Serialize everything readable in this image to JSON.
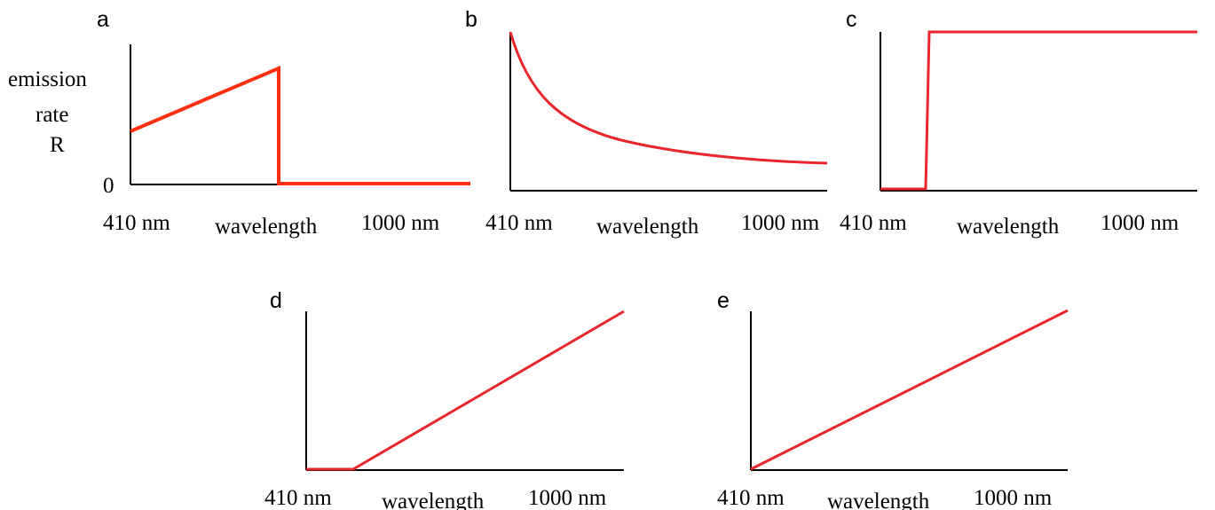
{
  "panels": [
    {
      "id": "a",
      "label": "a",
      "x_start_label": "410 nm",
      "x_mid_label": "wavelength",
      "x_end_label": "1000 nm",
      "y_label_lines": [
        "emission",
        "rate",
        "R"
      ],
      "y_zero_label": "0",
      "curve_color": "#ff3010"
    },
    {
      "id": "b",
      "label": "b",
      "x_start_label": "410 nm",
      "x_mid_label": "wavelength",
      "x_end_label": "1000 nm",
      "curve_color": "#e8262b"
    },
    {
      "id": "c",
      "label": "c",
      "x_start_label": "410 nm",
      "x_mid_label": "wavelength",
      "x_end_label": "1000 nm",
      "curve_color": "#e8262b"
    },
    {
      "id": "d",
      "label": "d",
      "x_start_label": "410 nm",
      "x_mid_label": "wavelength",
      "x_end_label": "1000 nm",
      "curve_color": "#e8262b"
    },
    {
      "id": "e",
      "label": "e",
      "x_start_label": "410 nm",
      "x_mid_label": "wavelength",
      "x_end_label": "1000 nm",
      "curve_color": "#e8262b"
    }
  ]
}
